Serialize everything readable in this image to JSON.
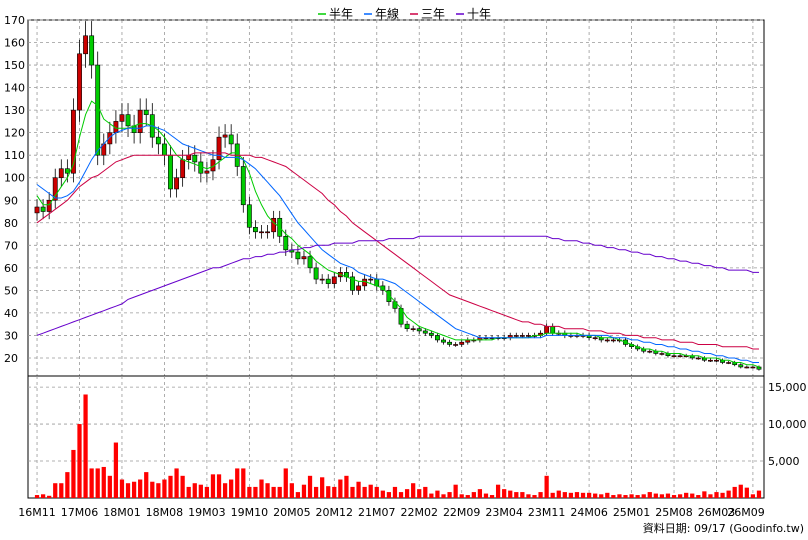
{
  "legend": [
    {
      "name": "半年",
      "color": "#00cc00"
    },
    {
      "name": "年線",
      "color": "#0066ff"
    },
    {
      "name": "三年",
      "color": "#cc0044"
    },
    {
      "name": "十年",
      "color": "#6600cc"
    }
  ],
  "footer": "資料日期: 09/17  (Goodinfo.tw)",
  "chart_data": {
    "type": "candlestick",
    "price_axis": {
      "ticks": [
        20,
        30,
        40,
        50,
        60,
        70,
        80,
        90,
        100,
        110,
        120,
        130,
        140,
        150,
        160,
        170
      ],
      "ylim": [
        12,
        170
      ]
    },
    "volume_axis": {
      "ticks": [
        "5,000",
        "10,000",
        "15,000"
      ],
      "tick_values": [
        5000,
        10000,
        15000
      ],
      "ylim": [
        0,
        16500
      ]
    },
    "x_labels": [
      "16M11",
      "17M06",
      "18M01",
      "18M08",
      "19M03",
      "19M10",
      "20M05",
      "20M12",
      "21M07",
      "22M02",
      "22M09",
      "23M04",
      "23M11",
      "24M06",
      "25M01",
      "25M08",
      "26M03",
      "26M09"
    ],
    "x_label_index": [
      0,
      7,
      14,
      21,
      28,
      35,
      42,
      49,
      56,
      63,
      70,
      77,
      84,
      91,
      98,
      105,
      112,
      118
    ],
    "months": 120,
    "close": [
      87,
      85,
      90,
      100,
      104,
      102,
      130,
      155,
      163,
      150,
      110,
      115,
      120,
      125,
      128,
      123,
      120,
      130,
      128,
      118,
      115,
      110,
      95,
      100,
      108,
      110,
      107,
      102,
      103,
      108,
      118,
      119,
      115,
      105,
      88,
      78,
      76,
      76,
      76,
      82,
      74,
      68,
      67,
      64,
      65,
      60,
      55,
      55,
      53,
      56,
      58,
      56,
      50,
      52,
      55,
      55,
      52,
      50,
      45,
      42,
      35,
      33,
      33,
      32,
      31,
      30,
      28,
      27,
      26,
      26,
      27,
      28,
      28,
      29,
      29,
      29,
      29,
      29,
      30,
      30,
      30,
      30,
      30,
      31,
      34,
      31,
      31,
      30,
      30,
      30,
      30,
      29,
      29,
      28,
      28,
      28,
      28,
      26,
      25,
      24,
      23,
      23,
      22,
      22,
      21,
      21,
      21,
      21,
      20,
      20,
      19,
      19,
      19,
      18,
      18,
      17,
      16,
      16,
      16,
      15
    ],
    "ma_half": [
      92,
      88,
      88,
      92,
      96,
      100,
      106,
      118,
      128,
      134,
      132,
      126,
      124,
      122,
      122,
      122,
      123,
      124,
      124,
      123,
      121,
      118,
      114,
      110,
      108,
      107,
      106,
      105,
      104,
      105,
      107,
      109,
      111,
      111,
      108,
      102,
      94,
      88,
      83,
      80,
      78,
      75,
      73,
      70,
      68,
      66,
      63,
      61,
      59,
      58,
      57,
      56,
      55,
      54,
      54,
      53,
      52,
      51,
      48,
      45,
      42,
      38,
      36,
      34,
      33,
      32,
      31,
      30,
      29,
      28,
      28,
      28,
      28,
      28,
      28,
      28,
      29,
      29,
      29,
      29,
      29,
      29,
      30,
      30,
      31,
      31,
      31,
      31,
      31,
      31,
      30,
      30,
      30,
      29,
      29,
      29,
      28,
      27,
      26,
      25,
      24,
      24,
      23,
      23,
      22,
      22,
      22,
      21,
      21,
      21,
      20,
      20,
      20,
      19,
      19,
      18,
      18,
      17,
      17,
      16
    ],
    "ma_year": [
      97,
      95,
      93,
      91,
      91,
      92,
      94,
      98,
      103,
      108,
      112,
      115,
      118,
      120,
      121,
      122,
      122,
      122,
      123,
      123,
      122,
      121,
      119,
      117,
      115,
      114,
      113,
      112,
      111,
      110,
      110,
      109,
      109,
      109,
      108,
      106,
      104,
      101,
      98,
      95,
      92,
      88,
      84,
      80,
      77,
      74,
      71,
      68,
      66,
      64,
      62,
      61,
      60,
      58,
      57,
      56,
      55,
      55,
      54,
      53,
      51,
      49,
      47,
      45,
      43,
      41,
      39,
      37,
      35,
      33,
      32,
      31,
      30,
      29,
      29,
      29,
      29,
      29,
      29,
      29,
      29,
      29,
      29,
      29,
      30,
      30,
      30,
      30,
      30,
      30,
      30,
      30,
      30,
      30,
      30,
      29,
      29,
      29,
      28,
      28,
      27,
      27,
      26,
      26,
      25,
      25,
      24,
      24,
      23,
      23,
      22,
      22,
      21,
      21,
      20,
      20,
      19,
      19,
      18,
      18
    ],
    "ma_3y": [
      80,
      82,
      84,
      86,
      88,
      90,
      93,
      96,
      98,
      100,
      101,
      103,
      105,
      107,
      108,
      109,
      110,
      110,
      110,
      110,
      110,
      110,
      110,
      110,
      110,
      110,
      111,
      111,
      111,
      111,
      111,
      111,
      110,
      110,
      110,
      110,
      109,
      109,
      108,
      107,
      106,
      105,
      103,
      101,
      99,
      97,
      95,
      93,
      90,
      88,
      85,
      83,
      80,
      78,
      76,
      74,
      72,
      70,
      68,
      66,
      64,
      62,
      60,
      58,
      56,
      54,
      52,
      50,
      48,
      47,
      46,
      45,
      44,
      43,
      42,
      41,
      40,
      39,
      38,
      37,
      36,
      36,
      35,
      35,
      34,
      34,
      34,
      33,
      33,
      33,
      33,
      32,
      32,
      32,
      31,
      31,
      31,
      30,
      30,
      30,
      29,
      29,
      29,
      28,
      28,
      28,
      27,
      27,
      27,
      26,
      26,
      26,
      26,
      25,
      25,
      25,
      25,
      25,
      24,
      24
    ],
    "ma_10y": [
      30,
      31,
      32,
      33,
      34,
      35,
      36,
      37,
      38,
      39,
      40,
      41,
      42,
      43,
      44,
      46,
      47,
      48,
      49,
      50,
      51,
      52,
      53,
      54,
      55,
      56,
      57,
      58,
      59,
      60,
      60,
      61,
      62,
      63,
      64,
      64,
      65,
      65,
      66,
      66,
      67,
      67,
      68,
      68,
      69,
      69,
      70,
      70,
      70,
      71,
      71,
      71,
      71,
      72,
      72,
      72,
      72,
      72,
      73,
      73,
      73,
      73,
      73,
      74,
      74,
      74,
      74,
      74,
      74,
      74,
      74,
      74,
      74,
      74,
      74,
      74,
      74,
      74,
      74,
      74,
      74,
      74,
      74,
      74,
      74,
      73,
      73,
      72,
      72,
      72,
      71,
      71,
      70,
      70,
      69,
      69,
      68,
      68,
      67,
      67,
      66,
      66,
      65,
      65,
      64,
      64,
      63,
      63,
      62,
      62,
      61,
      61,
      60,
      60,
      59,
      59,
      59,
      59,
      58,
      58
    ],
    "volume": [
      400,
      500,
      300,
      2000,
      2000,
      3500,
      6500,
      10000,
      14000,
      4000,
      4000,
      4200,
      3000,
      7500,
      2500,
      2000,
      2200,
      2500,
      3500,
      2200,
      2000,
      2500,
      3000,
      4000,
      3000,
      1500,
      2000,
      1800,
      1500,
      3200,
      3200,
      2000,
      2500,
      4000,
      4000,
      1500,
      1500,
      2500,
      2000,
      1500,
      1500,
      4000,
      2000,
      800,
      1800,
      3000,
      1500,
      2800,
      1600,
      1500,
      2500,
      3000,
      1500,
      2200,
      1500,
      1800,
      1500,
      1000,
      800,
      1500,
      800,
      1200,
      2000,
      1200,
      1500,
      600,
      1000,
      500,
      800,
      1800,
      500,
      400,
      800,
      1200,
      600,
      400,
      1800,
      1200,
      1000,
      800,
      800,
      500,
      400,
      800,
      3000,
      700,
      1000,
      800,
      700,
      800,
      700,
      700,
      600,
      500,
      700,
      400,
      500,
      400,
      500,
      400,
      500,
      800,
      600,
      500,
      600,
      400,
      500,
      700,
      600,
      400,
      900,
      500,
      800,
      700,
      1000,
      1500,
      1800,
      1400,
      500,
      1000
    ]
  }
}
